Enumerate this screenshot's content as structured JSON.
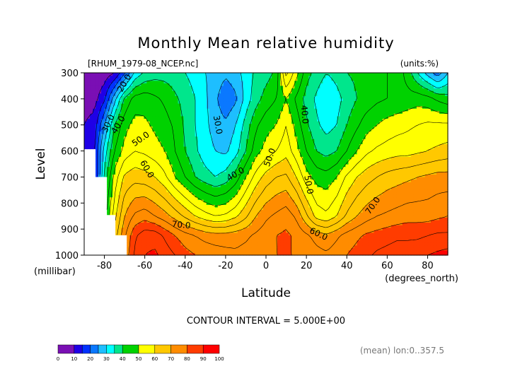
{
  "chart_data": {
    "type": "heatmap",
    "title": "Monthly Mean relative humidity",
    "source_label": "[RHUM_1979-08_NCEP.nc]",
    "units_label": "(units:%)",
    "xlabel": "Latitude",
    "x_unit_label": "(degrees_north)",
    "ylabel": "Level",
    "y_unit_label": "(millibar)",
    "xlim": [
      -90,
      90
    ],
    "ylim": [
      1000,
      300
    ],
    "x_ticks": [
      -80,
      -60,
      -40,
      -20,
      0,
      20,
      40,
      60,
      80
    ],
    "y_ticks": [
      300,
      400,
      500,
      600,
      700,
      800,
      900,
      1000
    ],
    "contour_interval_label": "CONTOUR INTERVAL = 5.000E+00",
    "footer_label": "(mean) lon:0..357.5",
    "colorbar": {
      "ticks": [
        0,
        10,
        20,
        30,
        40,
        50,
        60,
        70,
        80,
        90,
        100
      ],
      "colors": [
        "#7a0fb4",
        "#1f00e6",
        "#0032ff",
        "#0a78ff",
        "#1ebeff",
        "#00ffff",
        "#00e68c",
        "#00d200",
        "#ffff00",
        "#ffc800",
        "#ff8c00",
        "#ff3c00",
        "#ff0000"
      ],
      "bounds": [
        0,
        10,
        15,
        20,
        25,
        30,
        35,
        40,
        50,
        60,
        70,
        80,
        90,
        100
      ]
    },
    "contour_labels": [
      {
        "text": "20.0",
        "lat": -70,
        "lev": 340,
        "rot": -60
      },
      {
        "text": "30.0",
        "lat": -78,
        "lev": 495,
        "rot": -65
      },
      {
        "text": "40.0",
        "lat": -73,
        "lev": 500,
        "rot": -60
      },
      {
        "text": "50.0",
        "lat": -62,
        "lev": 555,
        "rot": -35
      },
      {
        "text": "60.0",
        "lat": -59,
        "lev": 670,
        "rot": 60
      },
      {
        "text": "70.0",
        "lat": -42,
        "lev": 885,
        "rot": 5
      },
      {
        "text": "30.0",
        "lat": -24,
        "lev": 500,
        "rot": 80
      },
      {
        "text": "40.0",
        "lat": -15,
        "lev": 690,
        "rot": -30
      },
      {
        "text": "50.0",
        "lat": 2,
        "lev": 625,
        "rot": -70
      },
      {
        "text": "40.0",
        "lat": 19,
        "lev": 460,
        "rot": 85
      },
      {
        "text": "50.0",
        "lat": 21,
        "lev": 730,
        "rot": 80
      },
      {
        "text": "60.0",
        "lat": 26,
        "lev": 920,
        "rot": 25
      },
      {
        "text": "70.0",
        "lat": 53,
        "lev": 810,
        "rot": -55
      }
    ],
    "grid": {
      "lats": [
        -90,
        -85,
        -80,
        -75,
        -70,
        -65,
        -60,
        -55,
        -50,
        -45,
        -40,
        -35,
        -30,
        -25,
        -20,
        -15,
        -10,
        -5,
        0,
        5,
        10,
        15,
        20,
        25,
        30,
        35,
        40,
        45,
        50,
        55,
        60,
        65,
        70,
        75,
        80,
        85,
        90
      ],
      "levels": [
        1000,
        925,
        850,
        700,
        600,
        500,
        400,
        300
      ],
      "values": [
        [
          null,
          null,
          null,
          null,
          76,
          86,
          90,
          91,
          88,
          85,
          82,
          80,
          79,
          78,
          77,
          76,
          77,
          78,
          79,
          80,
          80,
          80,
          79,
          77,
          76,
          78,
          80,
          82,
          84,
          86,
          87,
          88,
          88,
          89,
          90,
          91,
          92
        ],
        [
          null,
          null,
          null,
          62,
          74,
          84,
          88,
          88,
          84,
          80,
          77,
          75,
          73,
          72,
          72,
          73,
          74,
          76,
          78,
          80,
          81,
          79,
          76,
          73,
          71,
          74,
          77,
          79,
          81,
          82,
          83,
          84,
          84,
          84,
          85,
          86,
          86
        ],
        [
          null,
          null,
          42,
          58,
          70,
          76,
          78,
          75,
          72,
          68,
          64,
          60,
          57,
          55,
          56,
          59,
          64,
          70,
          74,
          76,
          78,
          74,
          66,
          58,
          56,
          60,
          66,
          70,
          73,
          75,
          76,
          77,
          78,
          78,
          78,
          79,
          80
        ],
        [
          null,
          12,
          36,
          52,
          61,
          63,
          62,
          60,
          56,
          50,
          45,
          40,
          37,
          35,
          37,
          42,
          50,
          57,
          62,
          65,
          66,
          60,
          52,
          48,
          47,
          50,
          56,
          60,
          63,
          65,
          67,
          68,
          69,
          70,
          71,
          72,
          72
        ],
        [
          10,
          14,
          32,
          45,
          52,
          55,
          54,
          52,
          50,
          45,
          40,
          36,
          32,
          30,
          29,
          33,
          40,
          48,
          52,
          55,
          58,
          52,
          45,
          40,
          38,
          40,
          45,
          50,
          54,
          56,
          57,
          58,
          58,
          59,
          60,
          61,
          62
        ],
        [
          10,
          12,
          25,
          40,
          48,
          52,
          51,
          49,
          47,
          44,
          39,
          35,
          31,
          28,
          26,
          30,
          37,
          44,
          48,
          50,
          55,
          48,
          41,
          36,
          33,
          35,
          40,
          44,
          48,
          50,
          52,
          53,
          54,
          55,
          56,
          56,
          56
        ],
        [
          8,
          8,
          14,
          28,
          41,
          47,
          48,
          46,
          44,
          41,
          38,
          35,
          31,
          26,
          21,
          24,
          32,
          38,
          42,
          45,
          50,
          44,
          38,
          34,
          30,
          33,
          37,
          40,
          42,
          44,
          45,
          46,
          47,
          48,
          47,
          44,
          42
        ],
        [
          6,
          6,
          7,
          10,
          19,
          31,
          36,
          38,
          38,
          37,
          35,
          33,
          30,
          28,
          26,
          28,
          32,
          36,
          38,
          41,
          62,
          52,
          42,
          38,
          35,
          37,
          40,
          41,
          40,
          42,
          45,
          48,
          43,
          35,
          28,
          22,
          30
        ]
      ]
    }
  }
}
